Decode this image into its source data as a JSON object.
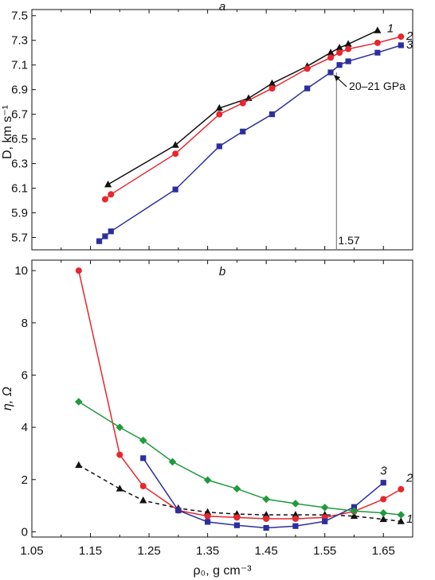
{
  "x_axis": {
    "label": "ρ₀, g cm⁻³",
    "ticks": [
      "1.05",
      "1.15",
      "1.25",
      "1.35",
      "1.45",
      "1.55",
      "1.65"
    ],
    "range": [
      1.05,
      1.7
    ]
  },
  "colors": {
    "series_1": "#111111",
    "series_2": "#e8262d",
    "series_3": "#2b2f9e",
    "series_green": "#1f9a3c",
    "guide_line": "#8a8a8a"
  },
  "chart_data": [
    {
      "type": "line",
      "panel_letter": "a",
      "xlabel": "ρ₀, g cm⁻³",
      "ylabel": "D, km s⁻¹",
      "xlim": [
        1.05,
        1.7
      ],
      "ylim": [
        5.6,
        7.55
      ],
      "ytick_labels": [
        "5.7",
        "5.9",
        "6.1",
        "6.3",
        "6.5",
        "6.7",
        "6.9",
        "7.1",
        "7.3",
        "7.5"
      ],
      "grid": false,
      "series": [
        {
          "name": "1",
          "marker": "triangle",
          "color": "#111111",
          "dashed": false,
          "x": [
            1.18,
            1.295,
            1.37,
            1.42,
            1.46,
            1.52,
            1.56,
            1.575,
            1.59,
            1.64
          ],
          "y": [
            6.13,
            6.45,
            6.75,
            6.83,
            6.95,
            7.09,
            7.2,
            7.24,
            7.27,
            7.38
          ]
        },
        {
          "name": "2",
          "marker": "circle",
          "color": "#e8262d",
          "dashed": false,
          "x": [
            1.175,
            1.185,
            1.295,
            1.37,
            1.41,
            1.46,
            1.52,
            1.56,
            1.575,
            1.59,
            1.64,
            1.68
          ],
          "y": [
            6.01,
            6.05,
            6.38,
            6.7,
            6.79,
            6.91,
            7.07,
            7.16,
            7.2,
            7.23,
            7.28,
            7.33
          ]
        },
        {
          "name": "3",
          "marker": "square",
          "color": "#2b2f9e",
          "dashed": false,
          "x": [
            1.165,
            1.175,
            1.185,
            1.295,
            1.37,
            1.41,
            1.46,
            1.52,
            1.56,
            1.575,
            1.59,
            1.64,
            1.68
          ],
          "y": [
            5.67,
            5.71,
            5.75,
            6.09,
            6.44,
            6.56,
            6.7,
            6.91,
            7.04,
            7.1,
            7.13,
            7.2,
            7.26
          ]
        }
      ],
      "annotations": [
        {
          "text": "20–21 GPa",
          "x": 1.56,
          "y": 7.04
        },
        {
          "text": "1.57",
          "x": 1.57,
          "y": 5.6
        }
      ]
    },
    {
      "type": "line",
      "panel_letter": "b",
      "xlabel": "ρ₀, g cm⁻³",
      "ylabel": "η, Ω",
      "xlim": [
        1.05,
        1.7
      ],
      "ylim": [
        -0.2,
        10.4
      ],
      "ytick_labels": [
        "0",
        "2",
        "4",
        "6",
        "8",
        "10"
      ],
      "grid": false,
      "series": [
        {
          "name": "1",
          "marker": "triangle",
          "color": "#111111",
          "dashed": true,
          "x": [
            1.13,
            1.2,
            1.24,
            1.3,
            1.35,
            1.4,
            1.45,
            1.5,
            1.55,
            1.6,
            1.65,
            1.68
          ],
          "y": [
            2.55,
            1.65,
            1.2,
            0.9,
            0.75,
            0.68,
            0.65,
            0.65,
            0.65,
            0.6,
            0.48,
            0.4
          ]
        },
        {
          "name": "2",
          "marker": "circle",
          "color": "#e8262d",
          "dashed": false,
          "x": [
            1.13,
            1.2,
            1.24,
            1.3,
            1.35,
            1.4,
            1.45,
            1.5,
            1.55,
            1.6,
            1.65,
            1.68
          ],
          "y": [
            10.0,
            2.95,
            1.75,
            0.82,
            0.6,
            0.55,
            0.5,
            0.5,
            0.55,
            0.78,
            1.25,
            1.63
          ]
        },
        {
          "name": "3",
          "marker": "square",
          "color": "#2b2f9e",
          "dashed": false,
          "x": [
            1.24,
            1.3,
            1.35,
            1.4,
            1.45,
            1.5,
            1.55,
            1.6,
            1.65
          ],
          "y": [
            2.82,
            0.82,
            0.38,
            0.25,
            0.15,
            0.22,
            0.4,
            0.95,
            1.88
          ]
        },
        {
          "name": "",
          "marker": "diamond",
          "color": "#1f9a3c",
          "dashed": false,
          "x": [
            1.13,
            1.2,
            1.24,
            1.29,
            1.35,
            1.4,
            1.45,
            1.5,
            1.55,
            1.6,
            1.65,
            1.68
          ],
          "y": [
            4.98,
            4.0,
            3.5,
            2.68,
            1.98,
            1.65,
            1.25,
            1.08,
            0.93,
            0.8,
            0.72,
            0.65
          ]
        }
      ]
    }
  ]
}
